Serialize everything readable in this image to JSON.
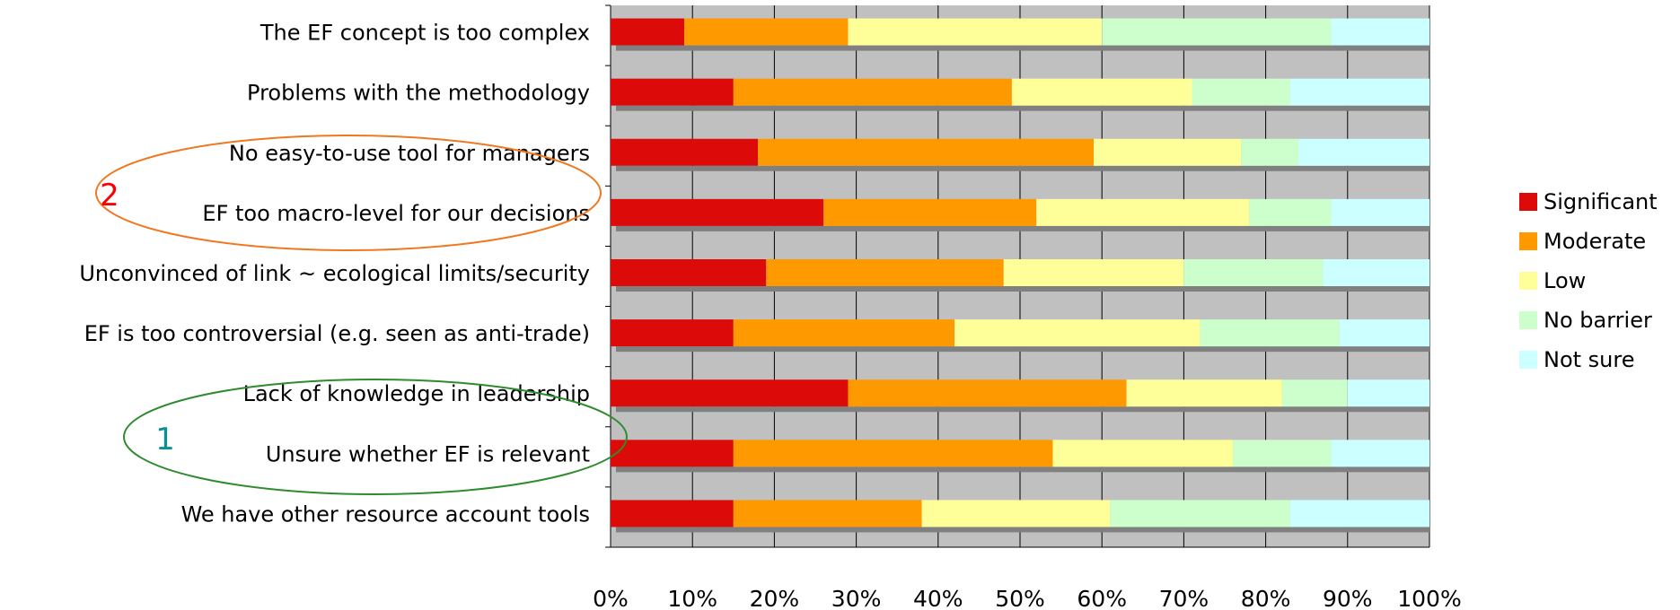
{
  "chart_data": {
    "type": "bar",
    "orientation": "horizontal",
    "stacked": true,
    "percent_stacked": true,
    "categories": [
      "The EF concept is too complex",
      "Problems with the methodology",
      "No easy-to-use tool for managers",
      "EF too macro-level for our decisions",
      "Unconvinced of link ~ ecological limits/security",
      "EF is too controversial (e.g. seen as anti-trade)",
      "Lack of knowledge in leadership",
      "Unsure whether EF is relevant",
      "We have other resource account tools"
    ],
    "series": [
      {
        "name": "Significant",
        "color": "#dd0a0a",
        "values": [
          9,
          15,
          18,
          26,
          19,
          15,
          29,
          15,
          15
        ]
      },
      {
        "name": "Moderate",
        "color": "#ff9900",
        "values": [
          20,
          34,
          41,
          26,
          29,
          27,
          34,
          39,
          23
        ]
      },
      {
        "name": "Low",
        "color": "#ffff99",
        "values": [
          31,
          22,
          18,
          26,
          22,
          30,
          19,
          22,
          23
        ]
      },
      {
        "name": "No barrier",
        "color": "#ccffcc",
        "values": [
          28,
          12,
          7,
          10,
          17,
          17,
          8,
          12,
          22
        ]
      },
      {
        "name": "Not sure",
        "color": "#ccffff",
        "values": [
          12,
          17,
          16,
          12,
          13,
          11,
          10,
          12,
          17
        ]
      }
    ],
    "x_ticks": [
      "0%",
      "10%",
      "20%",
      "30%",
      "40%",
      "50%",
      "60%",
      "70%",
      "80%",
      "90%",
      "100%"
    ],
    "xlim": [
      0,
      100
    ],
    "grid": true,
    "plot_background": "#c0c0c0",
    "legend_position": "right",
    "annotations": [
      {
        "text": "2",
        "color": "#ff0000",
        "ellipse_color": "#f07820",
        "groups": [
          "No easy-to-use tool for managers",
          "EF too macro-level for our decisions"
        ]
      },
      {
        "text": "1",
        "color": "#0b9090",
        "ellipse_color": "#2e8b2e",
        "groups": [
          "Lack of knowledge in leadership",
          "Unsure whether EF is relevant"
        ]
      }
    ]
  }
}
